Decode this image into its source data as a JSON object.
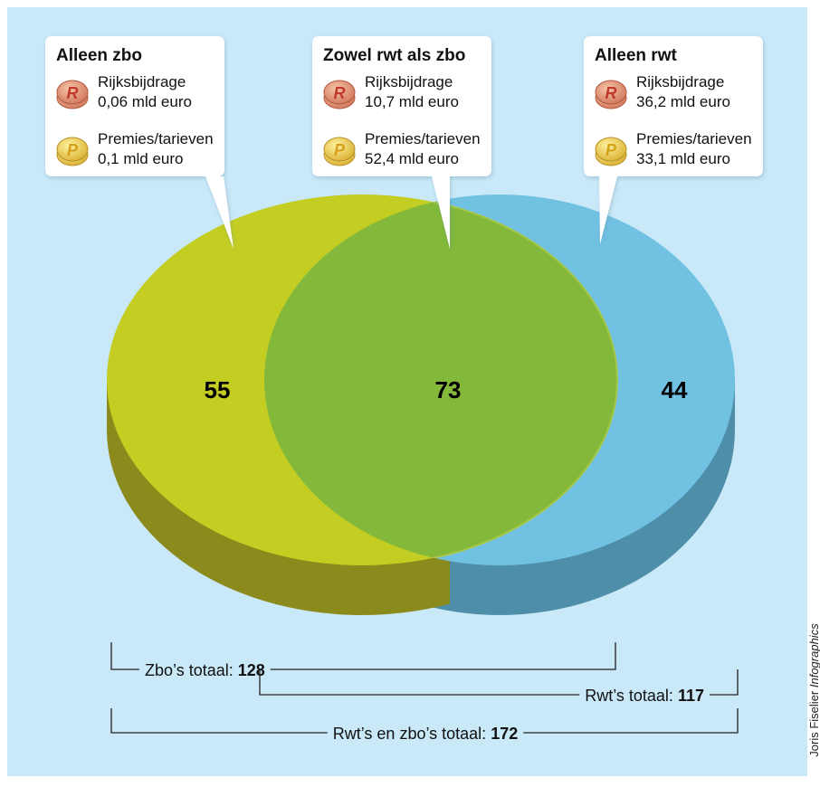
{
  "callouts": [
    {
      "title": "Alleen zbo",
      "items": [
        {
          "icon": "R",
          "label": "Rijksbijdrage",
          "amount": "0,06 mld euro"
        },
        {
          "icon": "P",
          "label": "Premies/tarieven",
          "amount": "0,1  mld euro"
        }
      ]
    },
    {
      "title": "Zowel rwt als zbo",
      "items": [
        {
          "icon": "R",
          "label": "Rijksbijdrage",
          "amount": "10,7 mld euro"
        },
        {
          "icon": "P",
          "label": "Premies/tarieven",
          "amount": "52,4  mld euro"
        }
      ]
    },
    {
      "title": "Alleen rwt",
      "items": [
        {
          "icon": "R",
          "label": "Rijksbijdrage",
          "amount": "36,2 mld euro"
        },
        {
          "icon": "P",
          "label": "Premies/tarieven",
          "amount": "33,1  mld euro"
        }
      ]
    }
  ],
  "regions": [
    55,
    73,
    44
  ],
  "totals": [
    {
      "label": "Zbo’s totaal:",
      "value": 128
    },
    {
      "label": "Rwt’s totaal:",
      "value": 117
    },
    {
      "label": "Rwt’s en zbo’s totaal:",
      "value": 172
    }
  ],
  "credit": {
    "name": "Joris Fiselier",
    "studio": "Infographics"
  }
}
